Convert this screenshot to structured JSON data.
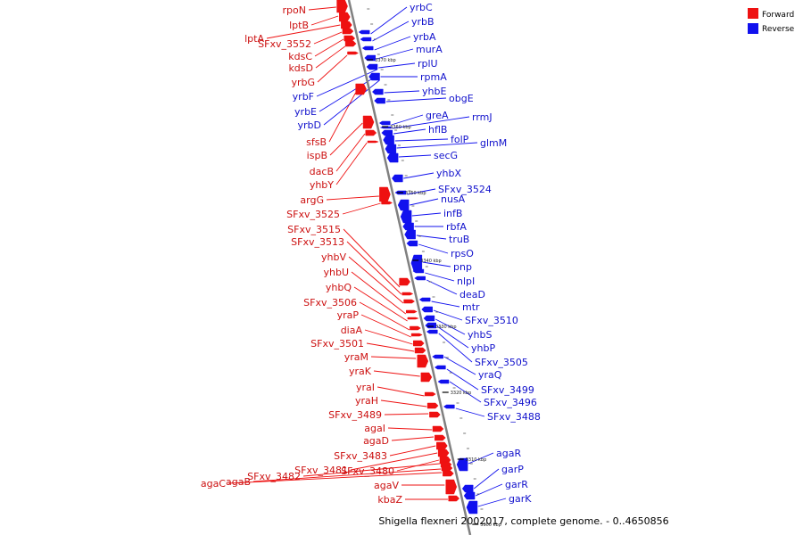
{
  "caption": "Shigella flexneri 2002017, complete genome. - 0..4650856",
  "legend": [
    {
      "label": "Forward",
      "color": "#ee1111"
    },
    {
      "label": "Reverse",
      "color": "#1111ee"
    }
  ],
  "colors": {
    "forward": "#ee1111",
    "reverse": "#1111ee",
    "axis": "#808080"
  },
  "kbp_marks": [
    "3370 kbp",
    "3360 kbp",
    "3350 kbp",
    "3340 kbp",
    "3330 kbp",
    "3320 kbp",
    "3310 kbp",
    "3300 kbp"
  ],
  "forward_genes": [
    "rpoN",
    "lptB",
    "lptA",
    "SFxv_3552",
    "kdsC",
    "kdsD",
    "yrbG",
    "sfsB",
    "ispB",
    "dacB",
    "yhbY",
    "argG",
    "SFxv_3525",
    "SFxv_3515",
    "SFxv_3513",
    "yhbV",
    "yhbU",
    "yhbQ",
    "SFxv_3506",
    "yraP",
    "diaA",
    "SFxv_3501",
    "yraM",
    "yraK",
    "yraI",
    "yraH",
    "SFxv_3489",
    "agaI",
    "agaD",
    "SFxv_3483",
    "SFxv_3481",
    "SFxv_3480",
    "SFxv_3482",
    "agaB",
    "agaC",
    "agaV",
    "kbaZ"
  ],
  "reverse_genes": [
    "yrbC",
    "yrbB",
    "yrbA",
    "murA",
    "rplU",
    "rpmA",
    "yhbE",
    "obgE",
    "greA",
    "rrmJ",
    "hflB",
    "folP",
    "glmM",
    "secG",
    "yhbX",
    "SFxv_3524",
    "nusA",
    "infB",
    "rbfA",
    "truB",
    "rpsO",
    "pnp",
    "nlpI",
    "deaD",
    "mtr",
    "SFxv_3510",
    "yhbS",
    "yhbP",
    "SFxv_3505",
    "yraQ",
    "SFxv_3499",
    "SFxv_3496",
    "SFxv_3488",
    "agaR",
    "garP",
    "garR",
    "garK"
  ],
  "side_labels": [
    "yrbF",
    "yrbE",
    "yrbD"
  ]
}
